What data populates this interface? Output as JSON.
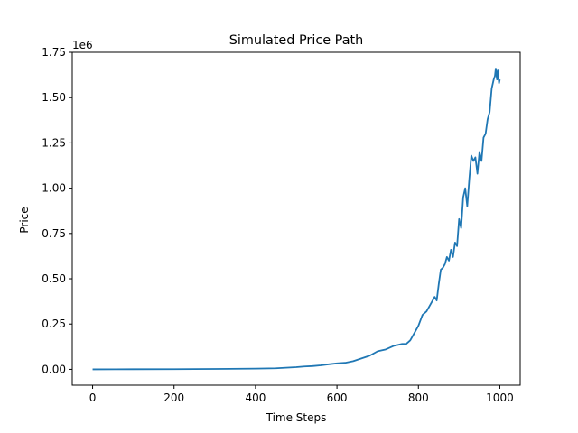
{
  "chart_data": {
    "type": "line",
    "title": "Simulated Price Path",
    "xlabel": "Time Steps",
    "ylabel": "Price",
    "y_offset_text": "1e6",
    "xlim": [
      -50,
      1050
    ],
    "ylim": [
      -0.0875,
      1.75
    ],
    "y_scale_factor": 1000000,
    "xticks": [
      0,
      200,
      400,
      600,
      800,
      1000
    ],
    "xtick_labels": [
      "0",
      "200",
      "400",
      "600",
      "800",
      "1000"
    ],
    "yticks": [
      0.0,
      0.25,
      0.5,
      0.75,
      1.0,
      1.25,
      1.5,
      1.75
    ],
    "ytick_labels": [
      "0.00",
      "0.25",
      "0.50",
      "0.75",
      "1.00",
      "1.25",
      "1.50",
      "1.75"
    ],
    "grid": false,
    "series": [
      {
        "color": "#1f77b4",
        "x": [
          0,
          100,
          200,
          300,
          400,
          450,
          500,
          520,
          540,
          560,
          580,
          600,
          620,
          640,
          660,
          680,
          700,
          720,
          740,
          760,
          770,
          780,
          790,
          800,
          810,
          820,
          830,
          840,
          845,
          850,
          855,
          860,
          865,
          870,
          875,
          880,
          885,
          890,
          895,
          900,
          905,
          910,
          915,
          920,
          925,
          930,
          935,
          940,
          945,
          950,
          955,
          960,
          965,
          970,
          975,
          980,
          985,
          988,
          990,
          993,
          995,
          998,
          1000
        ],
        "y": [
          0.0,
          0.0005,
          0.001,
          0.002,
          0.004,
          0.006,
          0.012,
          0.016,
          0.018,
          0.022,
          0.028,
          0.033,
          0.036,
          0.045,
          0.06,
          0.075,
          0.1,
          0.11,
          0.13,
          0.14,
          0.14,
          0.16,
          0.2,
          0.24,
          0.3,
          0.32,
          0.36,
          0.4,
          0.38,
          0.47,
          0.55,
          0.56,
          0.58,
          0.62,
          0.6,
          0.66,
          0.62,
          0.7,
          0.68,
          0.83,
          0.78,
          0.95,
          1.0,
          0.9,
          1.05,
          1.18,
          1.15,
          1.17,
          1.08,
          1.2,
          1.15,
          1.28,
          1.3,
          1.38,
          1.42,
          1.55,
          1.6,
          1.62,
          1.66,
          1.6,
          1.65,
          1.58,
          1.6
        ]
      }
    ]
  }
}
